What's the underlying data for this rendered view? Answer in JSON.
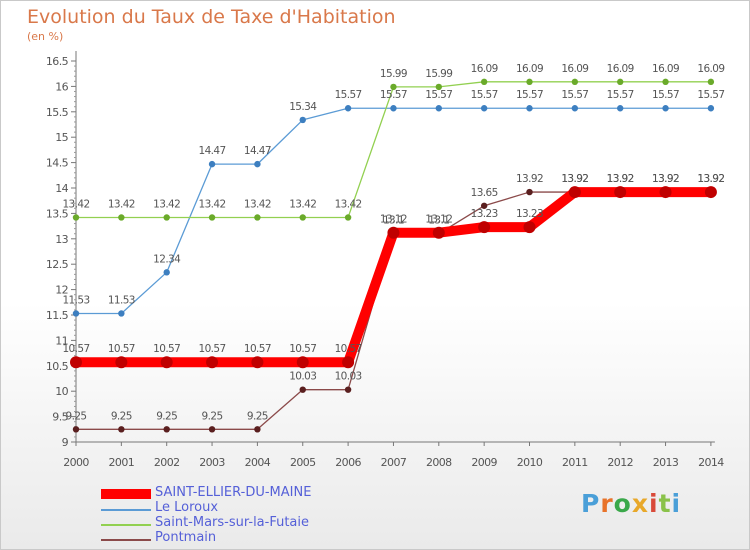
{
  "title": "Evolution du Taux de Taxe d'Habitation",
  "subtitle": "(en %)",
  "chart_data": {
    "type": "line",
    "title": "Evolution du Taux de Taxe d'Habitation",
    "ylabel": "(en %)",
    "xlabel": "",
    "x": [
      "2000",
      "2001",
      "2002",
      "2003",
      "2004",
      "2005",
      "2006",
      "2007",
      "2008",
      "2009",
      "2010",
      "2011",
      "2012",
      "2013",
      "2014"
    ],
    "yticks": [
      "9",
      "9.5",
      "10",
      "10.5",
      "11",
      "11.5",
      "12",
      "12.5",
      "13",
      "13.5",
      "14",
      "14.5",
      "15",
      "15.5",
      "16",
      "16.5"
    ],
    "ylim": [
      9,
      16.5
    ],
    "grid": false,
    "legend_position": "bottom-left",
    "series": [
      {
        "name": "SAINT-ELLIER-DU-MAINE",
        "color": "#ff0000",
        "values": [
          10.57,
          10.57,
          10.57,
          10.57,
          10.57,
          10.57,
          10.57,
          13.12,
          13.12,
          13.23,
          13.23,
          13.92,
          13.92,
          13.92,
          13.92
        ]
      },
      {
        "name": "Le Loroux",
        "color": "#5b9bd5",
        "values": [
          11.53,
          11.53,
          12.34,
          14.47,
          14.47,
          15.34,
          15.57,
          15.57,
          15.57,
          15.57,
          15.57,
          15.57,
          15.57,
          15.57,
          15.57
        ]
      },
      {
        "name": "Saint-Mars-sur-la-Futaie",
        "color": "#92d050",
        "values": [
          13.42,
          13.42,
          13.42,
          13.42,
          13.42,
          13.42,
          13.42,
          15.99,
          15.99,
          16.09,
          16.09,
          16.09,
          16.09,
          16.09,
          16.09
        ]
      },
      {
        "name": "Pontmain",
        "color": "#8b4a4a",
        "values": [
          9.25,
          9.25,
          9.25,
          9.25,
          9.25,
          10.03,
          10.03,
          13.1,
          13.1,
          13.65,
          13.92,
          13.92,
          13.92,
          13.92,
          13.92
        ]
      }
    ]
  },
  "logo": {
    "text": "Proxiti",
    "colors": [
      "#4a9fd8",
      "#e8732a",
      "#3aa84a",
      "#e8a82a",
      "#d94a3a",
      "#8ac24a",
      "#4a9fd8"
    ]
  }
}
